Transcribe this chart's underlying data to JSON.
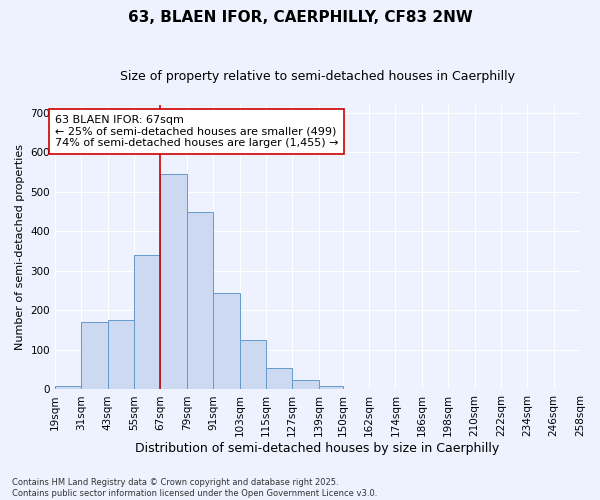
{
  "title": "63, BLAEN IFOR, CAERPHILLY, CF83 2NW",
  "subtitle": "Size of property relative to semi-detached houses in Caerphilly",
  "xlabel": "Distribution of semi-detached houses by size in Caerphilly",
  "ylabel": "Number of semi-detached properties",
  "bins": [
    "19sqm",
    "31sqm",
    "43sqm",
    "55sqm",
    "67sqm",
    "79sqm",
    "91sqm",
    "103sqm",
    "115sqm",
    "127sqm",
    "139sqm",
    "150sqm",
    "162sqm",
    "174sqm",
    "186sqm",
    "198sqm",
    "210sqm",
    "222sqm",
    "234sqm",
    "246sqm",
    "258sqm"
  ],
  "bin_edges": [
    19,
    31,
    43,
    55,
    67,
    79,
    91,
    103,
    115,
    127,
    139,
    150,
    162,
    174,
    186,
    198,
    210,
    222,
    234,
    246,
    258
  ],
  "values": [
    10,
    170,
    175,
    340,
    545,
    450,
    245,
    125,
    55,
    25,
    10,
    0,
    0,
    0,
    0,
    0,
    0,
    0,
    0,
    0
  ],
  "bar_color": "#ccd9f0",
  "bar_edge_color": "#6699cc",
  "vline_x": 67,
  "vline_color": "#cc0000",
  "annotation_text": "63 BLAEN IFOR: 67sqm\n← 25% of semi-detached houses are smaller (499)\n74% of semi-detached houses are larger (1,455) →",
  "annotation_box_edge_color": "#cc0000",
  "annotation_box_face_color": "#ffffff",
  "ylim": [
    0,
    720
  ],
  "yticks": [
    0,
    100,
    200,
    300,
    400,
    500,
    600,
    700
  ],
  "bg_color": "#eef2ff",
  "footer": "Contains HM Land Registry data © Crown copyright and database right 2025.\nContains public sector information licensed under the Open Government Licence v3.0.",
  "title_fontsize": 11,
  "subtitle_fontsize": 9,
  "xlabel_fontsize": 9,
  "ylabel_fontsize": 8,
  "tick_fontsize": 7.5,
  "footer_fontsize": 6,
  "annotation_fontsize": 8
}
